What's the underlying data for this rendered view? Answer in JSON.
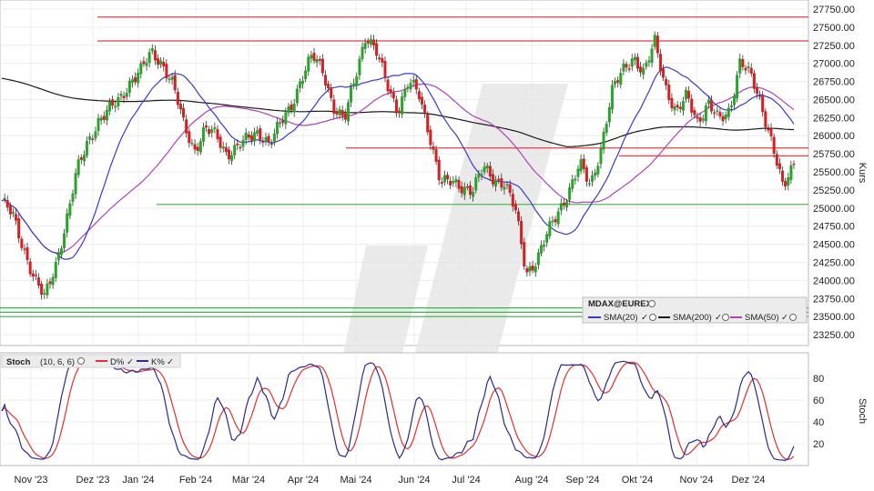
{
  "chart_data": [
    {
      "type": "candlestick",
      "instrument": "MDAX@EUREX",
      "ylabel": "Kurs",
      "ylim": [
        23100,
        27800
      ],
      "yticks": [
        23250,
        23500,
        23750,
        24000,
        24250,
        24500,
        24750,
        25000,
        25250,
        25500,
        25750,
        26000,
        26250,
        26500,
        26750,
        27000,
        27250,
        27500,
        27750
      ],
      "ytick_labels": [
        "23250.00",
        "23500.00",
        "23750.00",
        "24000.00",
        "24250.00",
        "24500.00",
        "24750.00",
        "25000.00",
        "25250.00",
        "25500.00",
        "25750.00",
        "26000.00",
        "26250.00",
        "26500.00",
        "26750.00",
        "27000.00",
        "27250.00",
        "27500.00",
        "27750.00"
      ],
      "x_labels": [
        "Nov '23",
        "Dez '23",
        "Jan '24",
        "Feb '24",
        "Mär '24",
        "Apr '24",
        "Mai '24",
        "Jun '24",
        "Jul '24",
        "Aug '24",
        "Sep '24",
        "Okt '24",
        "Nov '24",
        "Dez '24"
      ],
      "grid": true,
      "legend_position": "bottom-right",
      "legend": [
        {
          "name": "SMA(20)",
          "color": "#3a3ac8"
        },
        {
          "name": "SMA(200)",
          "color": "#1a1a1a"
        },
        {
          "name": "SMA(50)",
          "color": "#b040b8"
        }
      ],
      "resistance_lines": [
        27640,
        27310,
        25830,
        25720
      ],
      "support_lines": [
        25050,
        23620,
        23560,
        23500
      ],
      "close_series": [
        25100,
        24900,
        24450,
        24050,
        23750,
        24200,
        24800,
        25500,
        25900,
        26200,
        26350,
        26500,
        26750,
        26900,
        27150,
        27000,
        26700,
        26150,
        25800,
        26100,
        26000,
        25750,
        25850,
        25950,
        26050,
        25900,
        26150,
        26400,
        26800,
        27100,
        26900,
        26400,
        26200,
        26800,
        27400,
        27150,
        26700,
        26350,
        26750,
        26550,
        26000,
        25350,
        25350,
        25300,
        25250,
        25550,
        25400,
        25350,
        24950,
        24100,
        24300,
        24650,
        24950,
        25250,
        25600,
        25300,
        25850,
        26600,
        26900,
        27100,
        26850,
        27300,
        26700,
        26300,
        26550,
        26200,
        26450,
        26200,
        26350,
        27050,
        26800,
        26400,
        25900,
        25250,
        25600
      ]
    },
    {
      "type": "line",
      "title": "Stoch",
      "params": "(10, 6, 6)",
      "ylabel": "Stoch",
      "ylim": [
        0,
        100
      ],
      "yticks": [
        20,
        40,
        60,
        80
      ],
      "ytick_labels": [
        "20",
        "40",
        "60",
        "80"
      ],
      "series": [
        {
          "name": "D%",
          "color": "#e03030"
        },
        {
          "name": "K%",
          "color": "#2a2a90"
        }
      ]
    }
  ]
}
